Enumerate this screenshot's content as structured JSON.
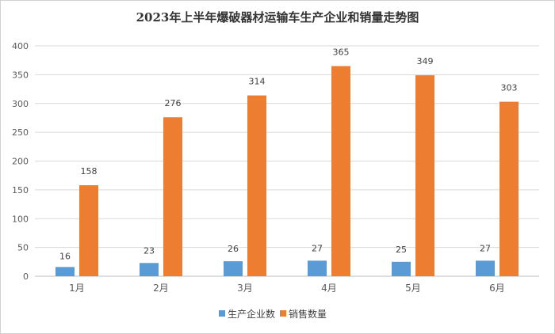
{
  "chart_data": {
    "type": "bar",
    "title": "2023年上半年爆破器材运输车生产企业和销量走势图",
    "categories": [
      "1月",
      "2月",
      "3月",
      "4月",
      "5月",
      "6月"
    ],
    "series": [
      {
        "name": "生产企业数",
        "values": [
          16,
          23,
          26,
          27,
          25,
          27
        ],
        "color": "#5b9bd5"
      },
      {
        "name": "销售数量",
        "values": [
          158,
          276,
          314,
          365,
          349,
          303
        ],
        "color": "#ed7d31"
      }
    ],
    "ylim": [
      0,
      400
    ],
    "yticks": [
      0,
      50,
      100,
      150,
      200,
      250,
      300,
      350,
      400
    ],
    "grid": true,
    "legend": "bottom",
    "xlabel": "",
    "ylabel": ""
  }
}
